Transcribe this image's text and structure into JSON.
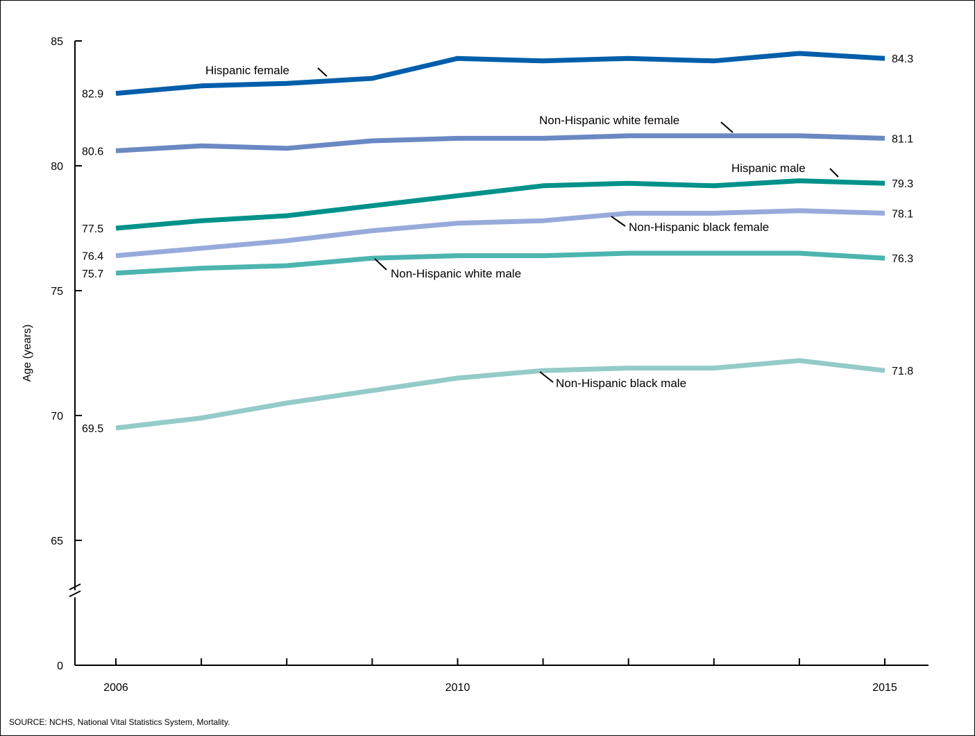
{
  "chart_data": {
    "type": "line",
    "title": "",
    "xlabel": "",
    "ylabel": "Age (years)",
    "x": [
      2006,
      2007,
      2008,
      2009,
      2010,
      2011,
      2012,
      2013,
      2014,
      2015
    ],
    "x_tick_labels": [
      "2006",
      "2010",
      "2015"
    ],
    "y_tick_labels": [
      "0",
      "65",
      "70",
      "75",
      "80",
      "85"
    ],
    "ylim": [
      63,
      85
    ],
    "axis_break": true,
    "grid": false,
    "series": [
      {
        "name": "Hispanic female",
        "color": "#005eaa",
        "start_label": "82.9",
        "end_label": "84.3",
        "values": [
          82.9,
          83.2,
          83.3,
          83.5,
          84.3,
          84.2,
          84.3,
          84.2,
          84.5,
          84.3
        ]
      },
      {
        "name": "Non-Hispanic white female",
        "color": "#6a89c3",
        "start_label": "80.6",
        "end_label": "81.1",
        "values": [
          80.6,
          80.8,
          80.7,
          81.0,
          81.1,
          81.1,
          81.2,
          81.2,
          81.2,
          81.1
        ]
      },
      {
        "name": "Hispanic male",
        "color": "#00928a",
        "start_label": "77.5",
        "end_label": "79.3",
        "values": [
          77.5,
          77.8,
          78.0,
          78.4,
          78.8,
          79.2,
          79.3,
          79.2,
          79.4,
          79.3
        ]
      },
      {
        "name": "Non-Hispanic black female",
        "color": "#98aadb",
        "start_label": "76.4",
        "end_label": "78.1",
        "values": [
          76.4,
          76.7,
          77.0,
          77.4,
          77.7,
          77.8,
          78.1,
          78.1,
          78.2,
          78.1
        ]
      },
      {
        "name": "Non-Hispanic white male",
        "color": "#4cb5ae",
        "start_label": "75.7",
        "end_label": "76.3",
        "values": [
          75.7,
          75.9,
          76.0,
          76.3,
          76.4,
          76.4,
          76.5,
          76.5,
          76.5,
          76.3
        ]
      },
      {
        "name": "Non-Hispanic black male",
        "color": "#93cbc9",
        "start_label": "69.5",
        "end_label": "71.8",
        "values": [
          69.5,
          69.9,
          70.5,
          71.0,
          71.5,
          71.8,
          71.9,
          71.9,
          72.2,
          71.8
        ]
      }
    ]
  },
  "footer": {
    "source": "SOURCE: NCHS, National Vital Statistics System, Mortality."
  }
}
